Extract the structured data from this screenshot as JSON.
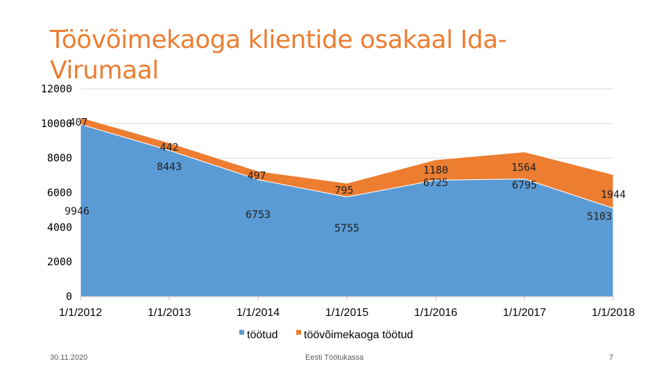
{
  "slide": {
    "title": "Töövõimekaoga klientide osakaal Ida-Virumaal",
    "date": "30.11.2020",
    "organization": "Eesti Töötukassa",
    "page_number": "7"
  },
  "chart_data": {
    "type": "area",
    "stacked": true,
    "title": "",
    "xlabel": "",
    "ylabel": "",
    "ylim": [
      0,
      12000
    ],
    "yticks": [
      "0",
      "2000",
      "4000",
      "6000",
      "8000",
      "10000",
      "12000"
    ],
    "categories": [
      "1/1/2012",
      "1/1/2013",
      "1/1/2014",
      "1/1/2015",
      "1/1/2016",
      "1/1/2017",
      "1/1/2018"
    ],
    "series": [
      {
        "name": "töötud",
        "values": [
          9946,
          8443,
          6753,
          5755,
          6725,
          6795,
          5103
        ],
        "color": "#5B9BD5"
      },
      {
        "name": "töövõimekaoga töötud",
        "values": [
          407,
          442,
          497,
          795,
          1180,
          1564,
          1944
        ],
        "color": "#ED7D31"
      }
    ],
    "grid": true,
    "legend": "bottom"
  }
}
